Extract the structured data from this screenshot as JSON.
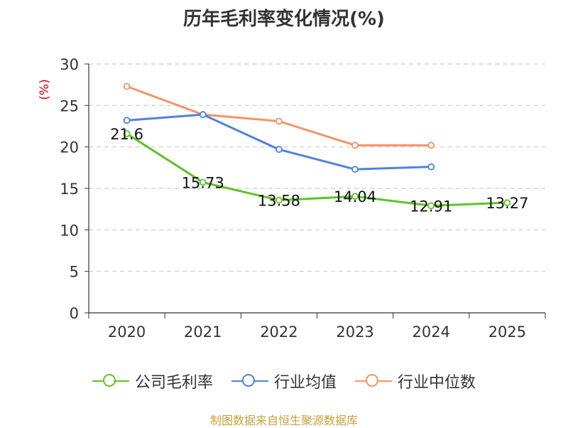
{
  "chart_data": {
    "type": "line",
    "title": "历年毛利率变化情况(%)",
    "ylabel": "(%)",
    "xlabel": "",
    "categories": [
      "2020",
      "2021",
      "2022",
      "2023",
      "2024",
      "2025"
    ],
    "ylim": [
      0,
      30
    ],
    "yticks": [
      0,
      5,
      10,
      15,
      20,
      25,
      30
    ],
    "grid": true,
    "legend_position": "bottom",
    "series": [
      {
        "name": "公司毛利率",
        "color": "#5cc424",
        "values": [
          21.6,
          15.73,
          13.58,
          14.04,
          12.91,
          13.27
        ],
        "labels": [
          "21.6",
          "15.73",
          "13.58",
          "14.04",
          "12.91",
          "13.27"
        ]
      },
      {
        "name": "行业均值",
        "color": "#4f82dd",
        "values": [
          23.2,
          23.9,
          19.7,
          17.3,
          17.6,
          null
        ]
      },
      {
        "name": "行业中位数",
        "color": "#f59364",
        "values": [
          27.3,
          23.9,
          23.1,
          20.2,
          20.2,
          null
        ]
      }
    ]
  },
  "source": "制图数据来自恒生聚源数据库",
  "colors": {
    "axis": "#333333",
    "grid": "#cccccc",
    "ylabel": "#cc0000"
  }
}
